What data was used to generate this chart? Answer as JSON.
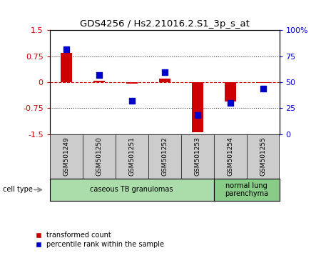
{
  "title": "GDS4256 / Hs2.21016.2.S1_3p_s_at",
  "samples": [
    "GSM501249",
    "GSM501250",
    "GSM501251",
    "GSM501252",
    "GSM501253",
    "GSM501254",
    "GSM501255"
  ],
  "transformed_count": [
    0.85,
    0.05,
    -0.05,
    0.1,
    -1.45,
    -0.55,
    -0.02
  ],
  "percentile_rank": [
    82,
    57,
    32,
    60,
    18,
    30,
    44
  ],
  "ylim_left": [
    -1.5,
    1.5
  ],
  "ylim_right": [
    0,
    100
  ],
  "left_yticks": [
    -1.5,
    -0.75,
    0,
    0.75,
    1.5
  ],
  "right_yticks": [
    0,
    25,
    50,
    75,
    100
  ],
  "right_yticklabels": [
    "0",
    "25",
    "50",
    "75",
    "100%"
  ],
  "bar_color": "#cc0000",
  "dot_color": "#0000cc",
  "hline_color": "#cc0000",
  "dotted_color": "#333333",
  "cell_type_groups": [
    {
      "label": "caseous TB granulomas",
      "n_samples": 5,
      "color": "#aaddaa"
    },
    {
      "label": "normal lung\nparenchyma",
      "n_samples": 2,
      "color": "#88cc88"
    }
  ],
  "legend_red": "transformed count",
  "legend_blue": "percentile rank within the sample",
  "cell_type_label": "cell type",
  "bar_width": 0.35,
  "dot_size": 40,
  "background_color": "#ffffff"
}
